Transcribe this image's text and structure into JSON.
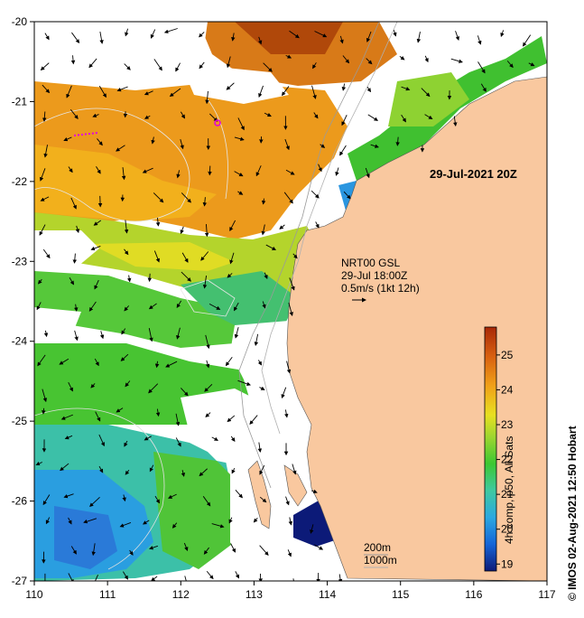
{
  "map": {
    "title": "29-Jul-2021 20Z",
    "lon_range": [
      110,
      117
    ],
    "lat_range": [
      -27,
      -20
    ],
    "x_ticks": [
      "110",
      "111",
      "112",
      "113",
      "114",
      "115",
      "116",
      "117"
    ],
    "y_ticks": [
      "-20",
      "-21",
      "-22",
      "-23",
      "-24",
      "-25",
      "-26",
      "-27"
    ],
    "land_color": "#f9c89f",
    "current_info": {
      "line1": "NRT00 GSL",
      "line2": "29-Jul 18:00Z",
      "line3": "0.5m/s (1kt 12h)"
    },
    "isobath_legend": {
      "line1": "200m",
      "line2": "1000m"
    },
    "colorbar": {
      "label": "4h comp, p50, All Sats",
      "min": 18.8,
      "max": 25.8,
      "ticks": [
        "19",
        "20",
        "21",
        "22",
        "23",
        "24",
        "25"
      ],
      "colors": [
        "#0c1a78",
        "#1565d8",
        "#2ba8e0",
        "#3fc9a0",
        "#3cc832",
        "#9ed630",
        "#e8e020",
        "#f0a018",
        "#d86010",
        "#a82808"
      ]
    },
    "credit": "IMOS 02-Aug-2021 12:50 Hobart"
  }
}
